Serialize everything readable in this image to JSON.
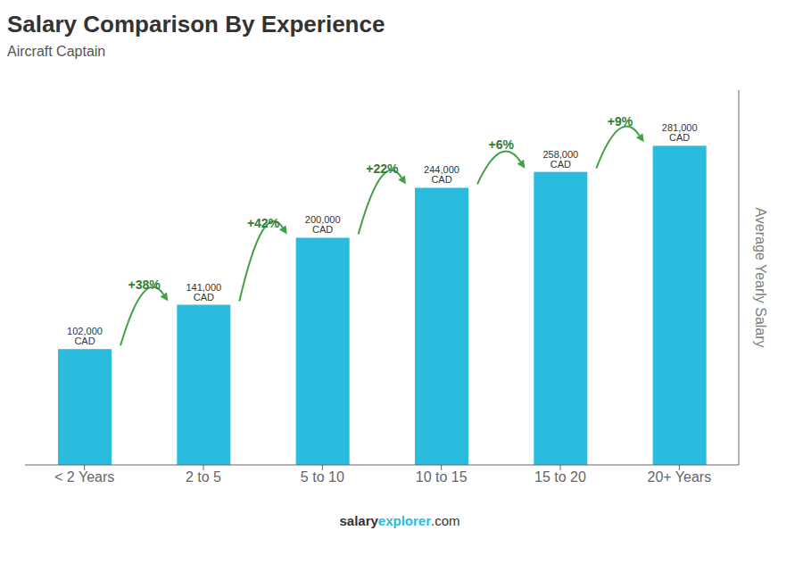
{
  "chart_data": {
    "type": "bar",
    "title": "Salary Comparison By Experience",
    "subtitle": "Aircraft Captain",
    "categories": [
      "< 2 Years",
      "2 to 5",
      "5 to 10",
      "10 to 15",
      "15 to 20",
      "20+ Years"
    ],
    "values": [
      102000,
      141000,
      200000,
      244000,
      258000,
      281000
    ],
    "value_labels": [
      "102,000 CAD",
      "141,000 CAD",
      "200,000 CAD",
      "244,000 CAD",
      "258,000 CAD",
      "281,000 CAD"
    ],
    "data_labels": true,
    "color": "#29BCDE",
    "ylabel": "Average Yearly Salary",
    "ylim": [
      0,
      330000
    ],
    "tick_labels": "x",
    "grid": false,
    "annotations": [
      "+38%",
      "+42%",
      "+22%",
      "+6%",
      "+9%"
    ],
    "watermark": [
      "salary",
      "explorer",
      ".com"
    ]
  }
}
